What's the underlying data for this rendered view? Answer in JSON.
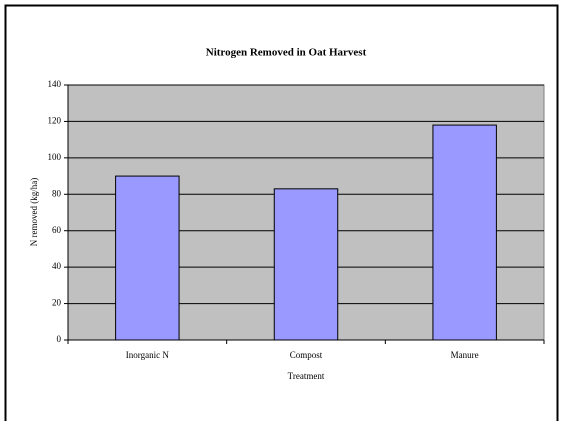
{
  "chart_data": {
    "type": "bar",
    "title": "Nitrogen Removed in Oat Harvest",
    "x_label": "Treatment",
    "y_label": "N removed (kg/ha)",
    "categories": [
      "Inorganic N",
      "Compost",
      "Manure"
    ],
    "values": [
      90,
      83,
      118
    ],
    "color": "#9999ff",
    "ylim": [
      0,
      140
    ],
    "yticks": [
      0,
      20,
      40,
      60,
      80,
      100,
      120,
      140
    ],
    "grid": true
  }
}
